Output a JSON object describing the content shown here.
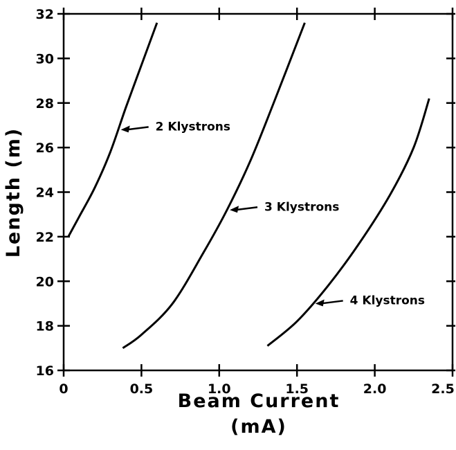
{
  "chart_data": {
    "type": "line",
    "xlabel": "Beam Current",
    "xlabel_unit": "(mA)",
    "ylabel": "Length (m)",
    "xlim": [
      0,
      2.5
    ],
    "xticks": [
      0,
      0.5,
      {
        "value": 1,
        "label": "1.0"
      },
      1.5,
      {
        "value": 2,
        "label": "2.0"
      },
      2.5
    ],
    "ylim": [
      16,
      32
    ],
    "yticks": [
      16,
      18,
      20,
      22,
      24,
      26,
      28,
      30,
      32
    ],
    "series": [
      {
        "name": "2 Klystrons",
        "color": "#000000",
        "x": [
          0.03,
          0.1,
          0.2,
          0.3,
          0.4,
          0.5,
          0.6
        ],
        "values": [
          22.0,
          22.9,
          24.2,
          25.8,
          27.8,
          29.7,
          31.6
        ]
      },
      {
        "name": "3 Klystrons",
        "color": "#000000",
        "x": [
          0.38,
          0.5,
          0.7,
          0.9,
          1.05,
          1.2,
          1.35,
          1.55
        ],
        "values": [
          17.0,
          17.6,
          19.0,
          21.3,
          23.2,
          25.4,
          28.0,
          31.6
        ]
      },
      {
        "name": "4 Klystrons",
        "color": "#000000",
        "x": [
          1.31,
          1.5,
          1.7,
          1.9,
          2.1,
          2.25,
          2.35
        ],
        "values": [
          17.1,
          18.2,
          19.8,
          21.7,
          23.9,
          26.0,
          28.2
        ]
      }
    ]
  }
}
